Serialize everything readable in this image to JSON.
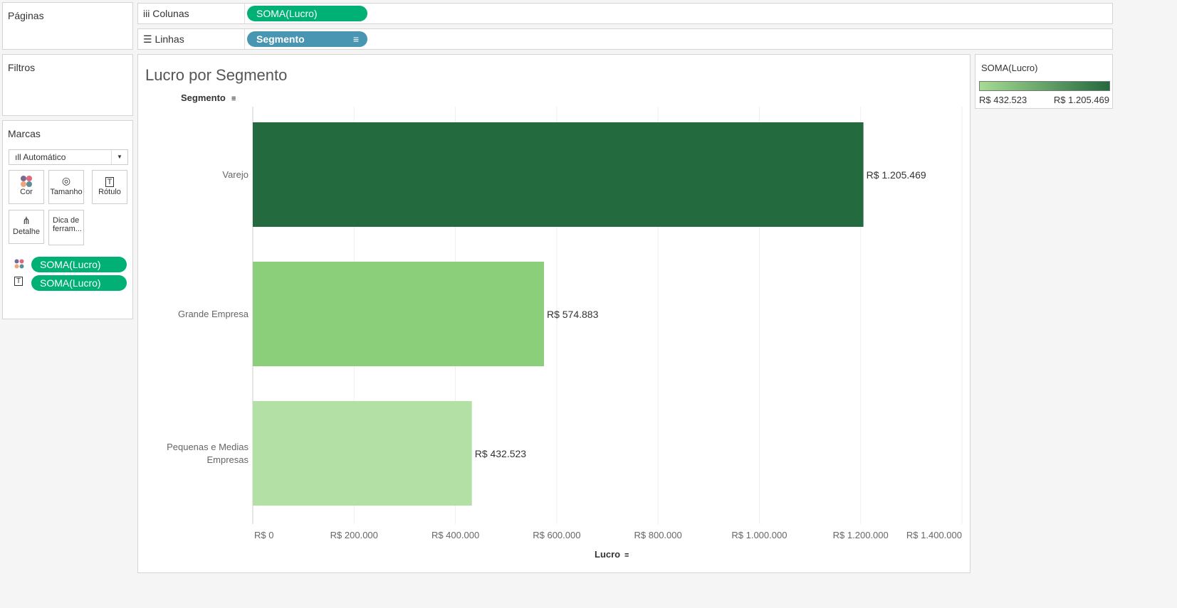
{
  "panels": {
    "pages": "Páginas",
    "filters": "Filtros",
    "marks": "Marcas"
  },
  "shelves": {
    "columns_label": "Colunas",
    "columns_pill": "SOMA(Lucro)",
    "rows_label": "Linhas",
    "rows_pill": "Segmento"
  },
  "marks": {
    "type": "Automático",
    "cards": [
      "Cor",
      "Tamanho",
      "Rótulo",
      "Detalhe",
      "Dica de ferram..."
    ],
    "pills": [
      "SOMA(Lucro)",
      "SOMA(Lucro)"
    ]
  },
  "legend": {
    "title": "SOMA(Lucro)",
    "min": "R$ 432.523",
    "max": "R$ 1.205.469",
    "color_min": "#b3e0a5",
    "color_max": "#236a3e"
  },
  "chart_data": {
    "type": "bar",
    "orientation": "horizontal",
    "title": "Lucro por Segmento",
    "ylabel": "Segmento",
    "xlabel": "Lucro",
    "categories": [
      "Varejo",
      "Grande Empresa",
      "Pequenas e Medias Empresas"
    ],
    "values": [
      1205469,
      574883,
      432523
    ],
    "labels": [
      "R$ 1.205.469",
      "R$ 574.883",
      "R$ 432.523"
    ],
    "colors": [
      "#236a3e",
      "#8ccf7a",
      "#b3e0a5"
    ],
    "xlim": [
      0,
      1400000
    ],
    "ticks": [
      0,
      200000,
      400000,
      600000,
      800000,
      1000000,
      1200000,
      1400000
    ],
    "tick_labels": [
      "R$ 0",
      "R$ 200.000",
      "R$ 400.000",
      "R$ 600.000",
      "R$ 800.000",
      "R$ 1.000.000",
      "R$ 1.200.000",
      "R$ 1.400.000"
    ],
    "grid": true
  }
}
